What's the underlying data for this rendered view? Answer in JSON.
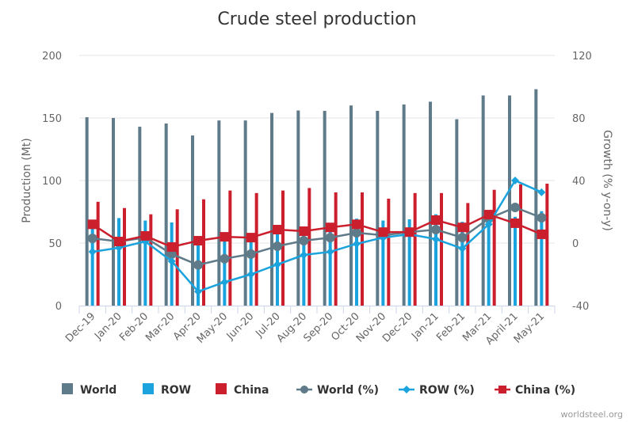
{
  "chart_data": {
    "type": "bar+line",
    "title": "Crude steel production",
    "ylabel": "Production (Mt)",
    "y2label": "Growth (% y-on-y)",
    "ylim": [
      0,
      200
    ],
    "y2lim": [
      -40,
      120
    ],
    "yticks": [
      0,
      50,
      100,
      150,
      200
    ],
    "y2ticks": [
      -40,
      0,
      40,
      80,
      120
    ],
    "grid": true,
    "legend_position": "bottom",
    "categories": [
      "Dec-19",
      "Jan-20",
      "Feb-20",
      "Mar-20",
      "Apr-20",
      "May-20",
      "Jun-20",
      "Jul-20",
      "Aug-20",
      "Sep-20",
      "Oct-20",
      "Nov-20",
      "Dec-20",
      "Jan-21",
      "Feb-21",
      "Mar-21",
      "April-21",
      "May-21"
    ],
    "bar_series": [
      {
        "name": "World",
        "color": "#5f7a88",
        "values": [
          150.6,
          150,
          143,
          145.6,
          136,
          148,
          148,
          154,
          156,
          155.7,
          160,
          155.7,
          160.8,
          163,
          149,
          168,
          168,
          173
        ]
      },
      {
        "name": "ROW",
        "color": "#1aa3dc",
        "values": [
          67,
          70,
          68,
          66.5,
          51,
          56,
          58,
          62,
          62,
          65,
          69.5,
          68,
          69,
          73,
          67,
          75.5,
          71,
          75.5
        ]
      },
      {
        "name": "China",
        "color": "#cc1f2e",
        "values": [
          83,
          78,
          73,
          77,
          85,
          92,
          90,
          92,
          94,
          90.5,
          90.5,
          85.5,
          90,
          90,
          82,
          92.6,
          97,
          97.5
        ]
      }
    ],
    "line_series": [
      {
        "name": "World (%)",
        "color": "#5f7a88",
        "marker": "circle",
        "values": [
          3,
          1,
          3.5,
          -7,
          -14,
          -10,
          -7,
          -2,
          1.5,
          3.5,
          6.6,
          5,
          7,
          8.6,
          3.5,
          15.7,
          22.8,
          16.2
        ]
      },
      {
        "name": "ROW (%)",
        "color": "#1aa3dc",
        "marker": "diamond",
        "values": [
          -5.6,
          -3,
          1,
          -11.6,
          -31,
          -25,
          -20,
          -13.7,
          -7.6,
          -5.6,
          -0.5,
          3.5,
          5.6,
          2.5,
          -3.5,
          12,
          40,
          32.5
        ]
      },
      {
        "name": "China (%)",
        "color": "#cc1f2e",
        "marker": "square",
        "values": [
          12,
          1,
          4.6,
          -2.5,
          1.5,
          4,
          3.5,
          8.6,
          7.6,
          10,
          12,
          7,
          7,
          14.7,
          10,
          18.2,
          12.7,
          5.6
        ]
      }
    ]
  },
  "watermark": "worldsteel.org"
}
